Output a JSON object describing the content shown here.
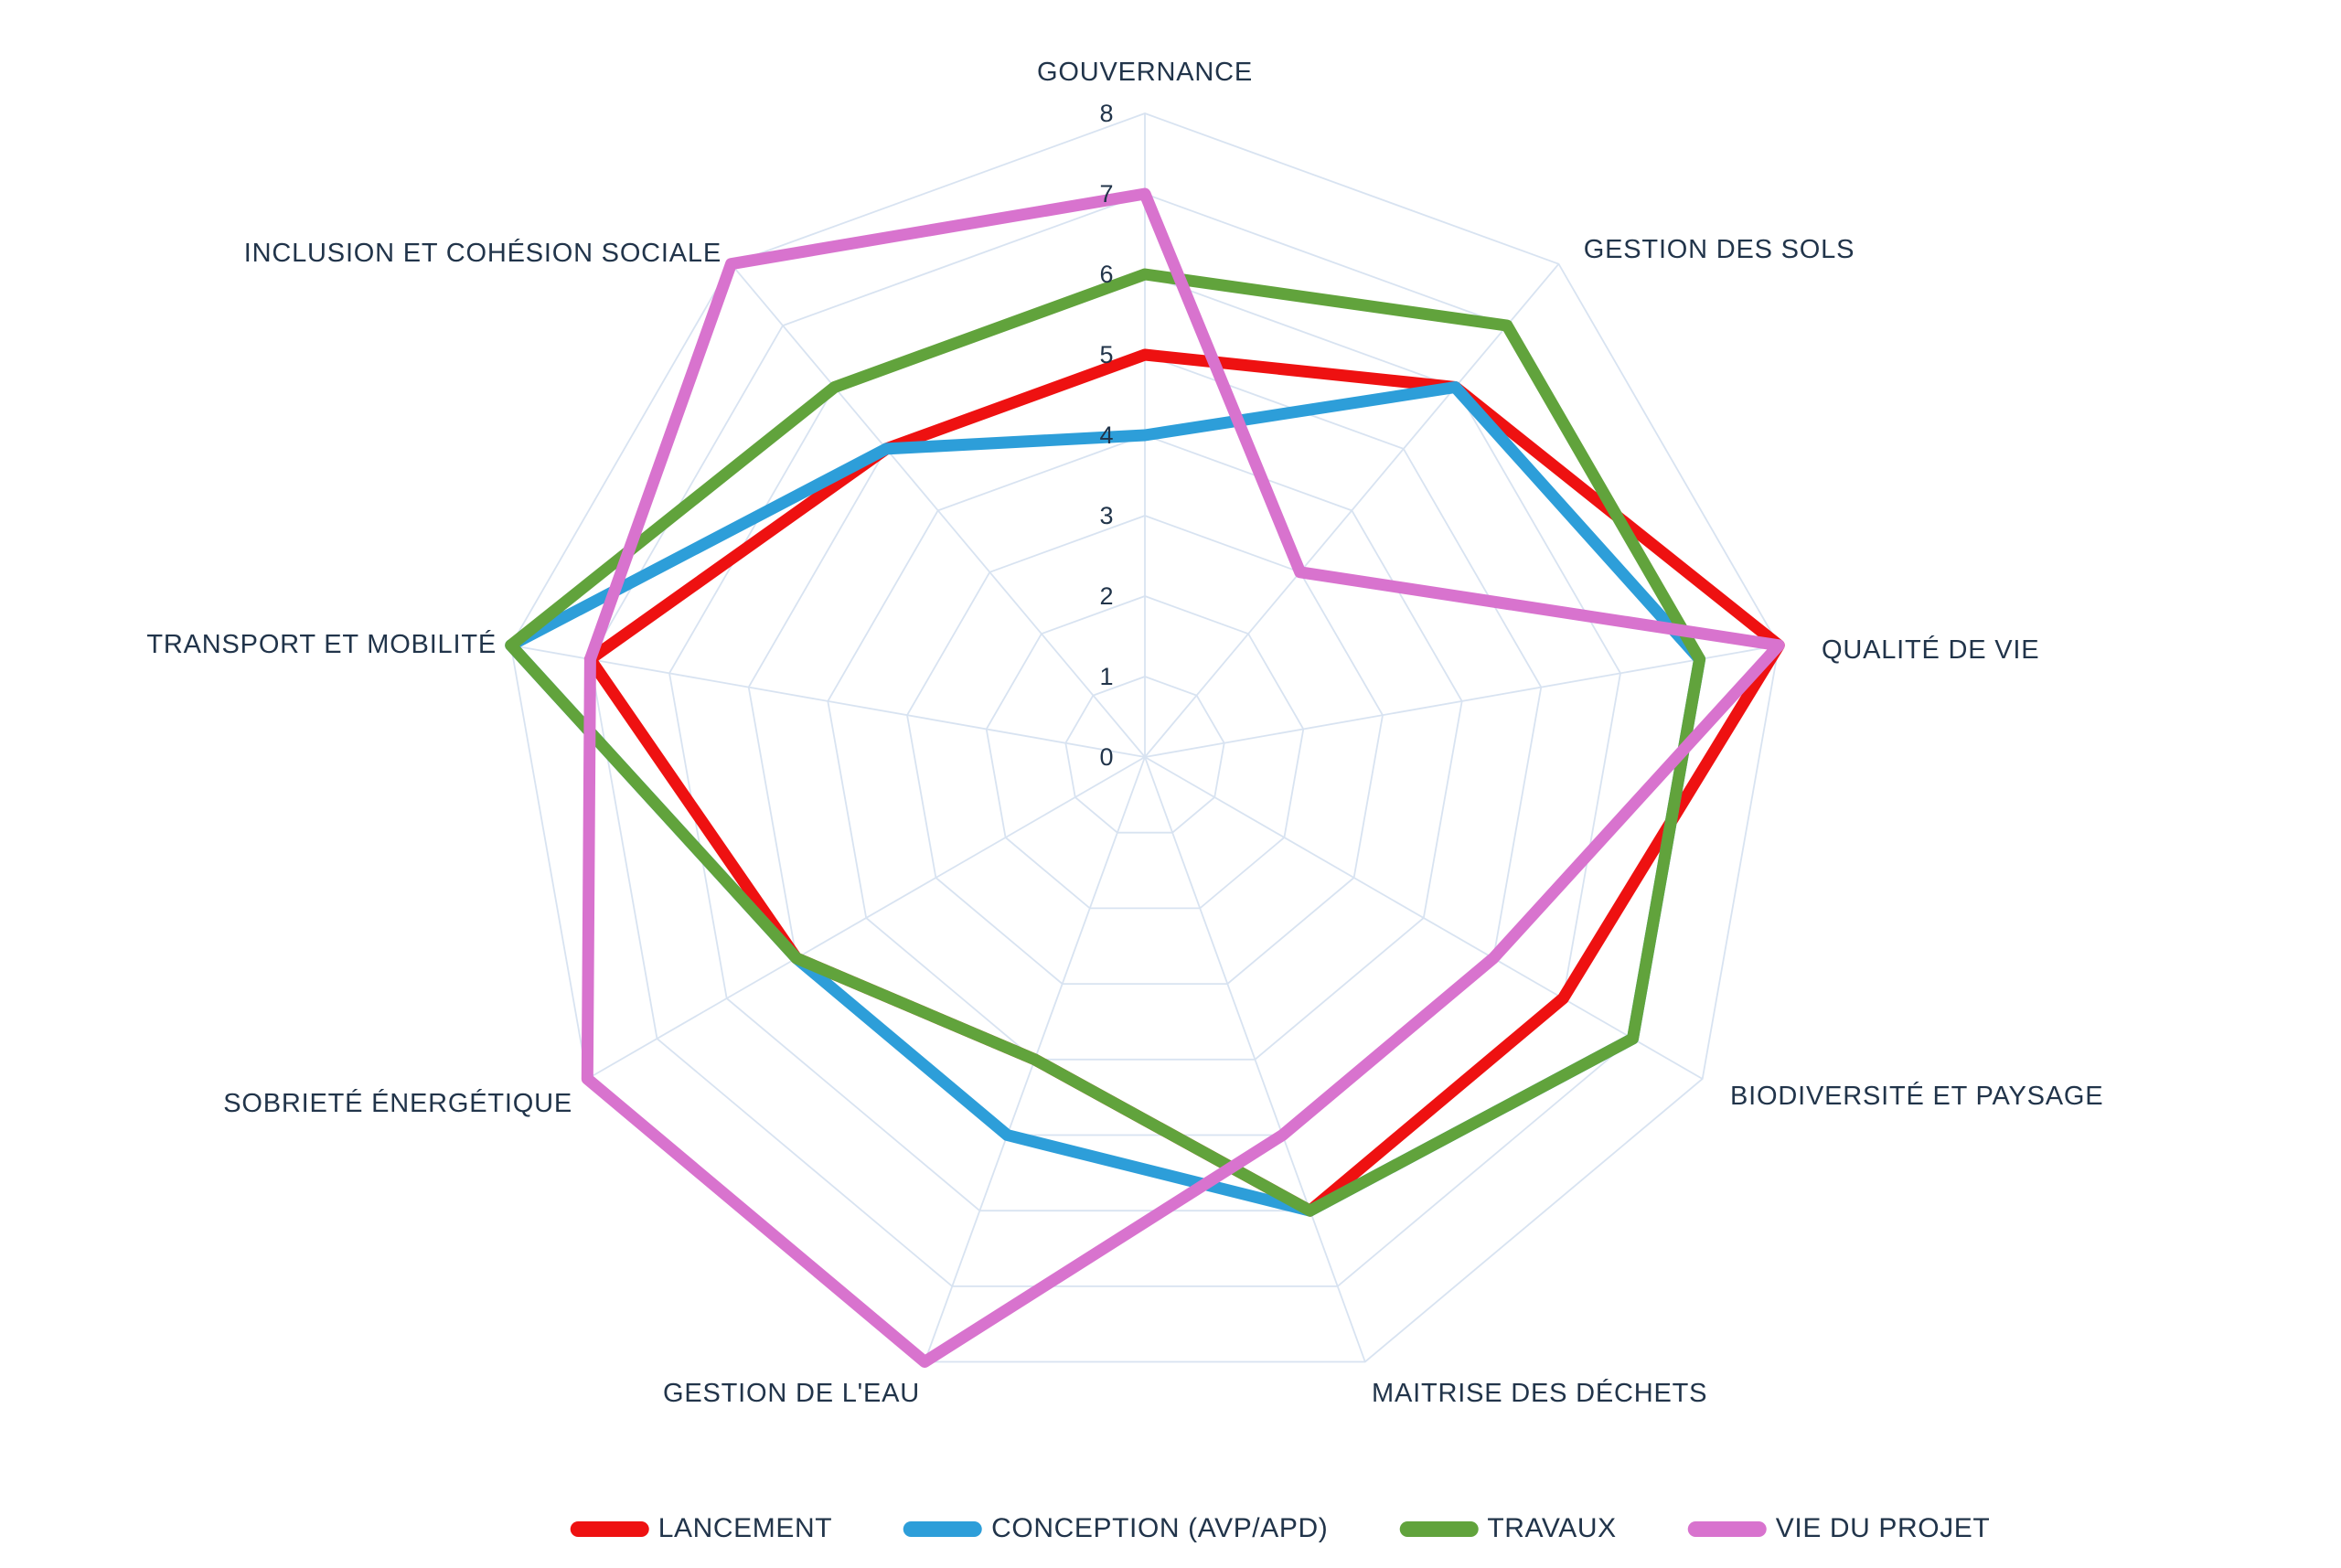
{
  "chart_data": {
    "type": "radar",
    "title": "",
    "axes": [
      "GOUVERNANCE",
      "GESTION DES SOLS",
      "QUALITÉ DE VIE",
      "BIODIVERSITÉ ET PAYSAGE",
      "MAITRISE DES DÉCHETS",
      "GESTION DE L'EAU",
      "SOBRIETÉ ÉNERGÉTIQUE",
      "TRANSPORT ET MOBILITÉ",
      "INCLUSION ET COHÉSION SOCIALE"
    ],
    "scale": {
      "min": 0,
      "max": 8,
      "step": 1,
      "ticks": [
        0,
        1,
        2,
        3,
        4,
        5,
        6,
        7,
        8
      ]
    },
    "series": [
      {
        "name": "LANCEMENT",
        "color": "#ee1111",
        "values": [
          5,
          6,
          8,
          6,
          6,
          4,
          5,
          7,
          5
        ]
      },
      {
        "name": "CONCEPTION (AVP/APD)",
        "color": "#2d9ed9",
        "values": [
          4,
          6,
          7,
          7,
          6,
          5,
          5,
          8,
          5
        ]
      },
      {
        "name": "TRAVAUX",
        "color": "#61a33c",
        "values": [
          6,
          7,
          7,
          7,
          6,
          4,
          5,
          8,
          6
        ]
      },
      {
        "name": "VIE DU PROJET",
        "color": "#d873ce",
        "values": [
          7,
          3,
          8,
          5,
          5,
          8,
          8,
          7,
          8
        ]
      }
    ],
    "legend_position": "bottom",
    "grid": true,
    "grid_shape": "polygon-rings-and-spokes"
  },
  "colors": {
    "grid": "#d8e3f1",
    "label": "#21344a",
    "background": "#ffffff"
  }
}
